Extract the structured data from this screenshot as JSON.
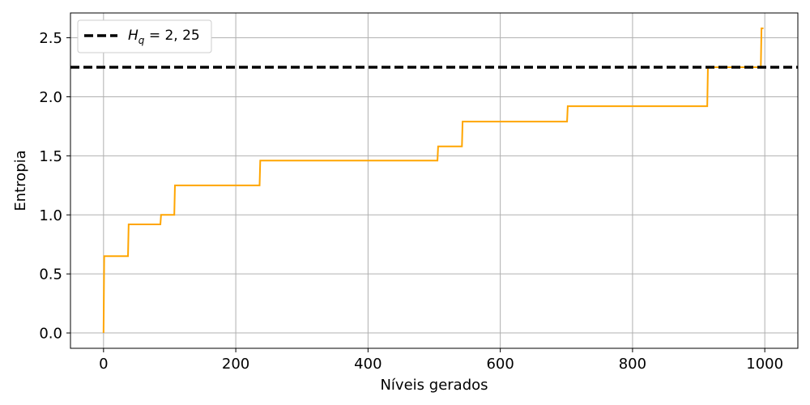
{
  "chart_data": {
    "type": "line",
    "title": "",
    "xlabel": "Níveis gerados",
    "ylabel": "Entropia",
    "xlim": [
      -50,
      1050
    ],
    "ylim": [
      -0.13,
      2.71
    ],
    "xticks": [
      0,
      200,
      400,
      600,
      800,
      1000
    ],
    "xtick_labels": [
      "0",
      "200",
      "400",
      "600",
      "800",
      "1000"
    ],
    "yticks": [
      0.0,
      0.5,
      1.0,
      1.5,
      2.0,
      2.5
    ],
    "ytick_labels": [
      "0.0",
      "0.5",
      "1.0",
      "1.5",
      "2.0",
      "2.5"
    ],
    "grid": true,
    "legend_position": "top-left",
    "series": [
      {
        "color": "#ffa500",
        "style": "step",
        "x": [
          0,
          1,
          37,
          38,
          86,
          87,
          107,
          108,
          236,
          237,
          505,
          506,
          542,
          543,
          701,
          702,
          913,
          914,
          994,
          995,
          998
        ],
        "y": [
          0.0,
          0.65,
          0.65,
          0.92,
          0.92,
          1.0,
          1.0,
          1.25,
          1.25,
          1.46,
          1.46,
          1.58,
          1.58,
          1.79,
          1.79,
          1.92,
          1.92,
          2.25,
          2.25,
          2.58,
          2.58
        ]
      }
    ],
    "reference_line": {
      "y": 2.25,
      "color": "#000000",
      "style": "dashed",
      "label_prefix": "H",
      "label_sub": "q",
      "label_rest": " = 2, 25"
    }
  }
}
